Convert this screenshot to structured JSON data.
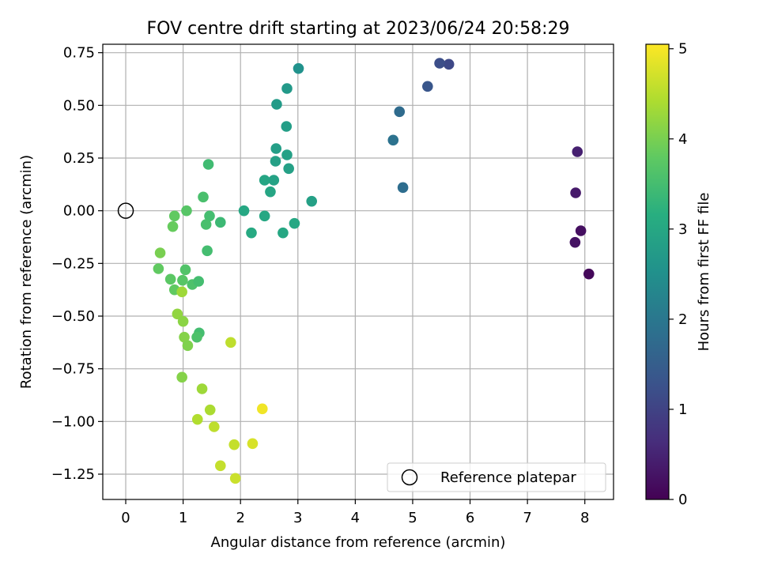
{
  "chart_data": {
    "type": "scatter",
    "title": "FOV centre drift starting at 2023/06/24 20:58:29",
    "xlabel": "Angular distance from reference (arcmin)",
    "ylabel": "Rotation from reference (arcmin)",
    "xlim": [
      -0.4,
      8.5
    ],
    "ylim": [
      -1.37,
      0.79
    ],
    "x_ticks": [
      0,
      1,
      2,
      3,
      4,
      5,
      6,
      7,
      8
    ],
    "y_ticks": [
      -1.25,
      -1.0,
      -0.75,
      -0.5,
      -0.25,
      0.0,
      0.25,
      0.5,
      0.75
    ],
    "x_tick_labels": [
      "0",
      "1",
      "2",
      "3",
      "4",
      "5",
      "6",
      "7",
      "8"
    ],
    "y_tick_labels": [
      "−1.25",
      "−1.00",
      "−0.75",
      "−0.50",
      "−0.25",
      "0.00",
      "0.25",
      "0.50",
      "0.75"
    ],
    "grid": true,
    "colorbar": {
      "label": "Hours from first FF file",
      "colormap": "viridis",
      "range": [
        0,
        5.05
      ],
      "ticks": [
        0,
        1,
        2,
        3,
        4,
        5
      ],
      "tick_labels": [
        "0",
        "1",
        "2",
        "3",
        "4",
        "5"
      ]
    },
    "legend": {
      "position": "lower-right",
      "entries": [
        "Reference platepar"
      ]
    },
    "reference_point": {
      "x": 0.0,
      "y": 0.0
    },
    "points": [
      {
        "x": 8.07,
        "y": -0.3,
        "c": 0.1
      },
      {
        "x": 7.93,
        "y": -0.095,
        "c": 0.2
      },
      {
        "x": 7.83,
        "y": -0.15,
        "c": 0.25
      },
      {
        "x": 7.84,
        "y": 0.085,
        "c": 0.35
      },
      {
        "x": 7.87,
        "y": 0.28,
        "c": 0.45
      },
      {
        "x": 5.63,
        "y": 0.695,
        "c": 1.1
      },
      {
        "x": 5.47,
        "y": 0.7,
        "c": 1.2
      },
      {
        "x": 5.26,
        "y": 0.59,
        "c": 1.35
      },
      {
        "x": 4.77,
        "y": 0.47,
        "c": 1.75
      },
      {
        "x": 4.83,
        "y": 0.11,
        "c": 1.8
      },
      {
        "x": 4.66,
        "y": 0.335,
        "c": 1.9
      },
      {
        "x": 3.01,
        "y": 0.675,
        "c": 2.55
      },
      {
        "x": 2.81,
        "y": 0.58,
        "c": 2.7
      },
      {
        "x": 2.63,
        "y": 0.505,
        "c": 2.75
      },
      {
        "x": 2.8,
        "y": 0.4,
        "c": 2.8
      },
      {
        "x": 2.62,
        "y": 0.295,
        "c": 2.8
      },
      {
        "x": 2.81,
        "y": 0.265,
        "c": 2.85
      },
      {
        "x": 2.61,
        "y": 0.235,
        "c": 2.85
      },
      {
        "x": 2.84,
        "y": 0.2,
        "c": 2.85
      },
      {
        "x": 2.58,
        "y": 0.145,
        "c": 2.9
      },
      {
        "x": 2.42,
        "y": 0.145,
        "c": 2.95
      },
      {
        "x": 2.52,
        "y": 0.09,
        "c": 2.95
      },
      {
        "x": 3.24,
        "y": 0.045,
        "c": 2.85
      },
      {
        "x": 2.06,
        "y": 0.0,
        "c": 3.0
      },
      {
        "x": 2.42,
        "y": -0.025,
        "c": 3.0
      },
      {
        "x": 2.19,
        "y": -0.105,
        "c": 3.05
      },
      {
        "x": 2.74,
        "y": -0.105,
        "c": 3.0
      },
      {
        "x": 2.94,
        "y": -0.06,
        "c": 3.0
      },
      {
        "x": 1.65,
        "y": -0.055,
        "c": 3.4
      },
      {
        "x": 1.44,
        "y": 0.22,
        "c": 3.45
      },
      {
        "x": 1.35,
        "y": 0.065,
        "c": 3.55
      },
      {
        "x": 1.46,
        "y": -0.025,
        "c": 3.5
      },
      {
        "x": 1.4,
        "y": -0.065,
        "c": 3.55
      },
      {
        "x": 1.42,
        "y": -0.19,
        "c": 3.5
      },
      {
        "x": 1.06,
        "y": 0.0,
        "c": 3.7
      },
      {
        "x": 0.85,
        "y": -0.025,
        "c": 3.8
      },
      {
        "x": 0.82,
        "y": -0.075,
        "c": 3.85
      },
      {
        "x": 0.6,
        "y": -0.2,
        "c": 4.0
      },
      {
        "x": 0.57,
        "y": -0.275,
        "c": 3.8
      },
      {
        "x": 0.78,
        "y": -0.325,
        "c": 3.75
      },
      {
        "x": 0.99,
        "y": -0.33,
        "c": 3.7
      },
      {
        "x": 1.04,
        "y": -0.28,
        "c": 3.65
      },
      {
        "x": 1.16,
        "y": -0.35,
        "c": 3.6
      },
      {
        "x": 1.27,
        "y": -0.335,
        "c": 3.5
      },
      {
        "x": 0.85,
        "y": -0.375,
        "c": 3.8
      },
      {
        "x": 0.98,
        "y": -0.385,
        "c": 4.3
      },
      {
        "x": 0.9,
        "y": -0.49,
        "c": 4.2
      },
      {
        "x": 1.0,
        "y": -0.525,
        "c": 4.15
      },
      {
        "x": 1.28,
        "y": -0.58,
        "c": 3.5
      },
      {
        "x": 1.24,
        "y": -0.6,
        "c": 3.6
      },
      {
        "x": 1.02,
        "y": -0.6,
        "c": 4.1
      },
      {
        "x": 1.08,
        "y": -0.64,
        "c": 4.05
      },
      {
        "x": 1.83,
        "y": -0.625,
        "c": 4.55
      },
      {
        "x": 0.98,
        "y": -0.79,
        "c": 4.1
      },
      {
        "x": 1.33,
        "y": -0.845,
        "c": 4.3
      },
      {
        "x": 1.47,
        "y": -0.945,
        "c": 4.4
      },
      {
        "x": 1.25,
        "y": -0.99,
        "c": 4.45
      },
      {
        "x": 1.54,
        "y": -1.025,
        "c": 4.55
      },
      {
        "x": 1.89,
        "y": -1.11,
        "c": 4.6
      },
      {
        "x": 2.21,
        "y": -1.105,
        "c": 4.75
      },
      {
        "x": 2.38,
        "y": -0.94,
        "c": 4.95
      },
      {
        "x": 1.65,
        "y": -1.21,
        "c": 4.6
      },
      {
        "x": 1.91,
        "y": -1.27,
        "c": 4.65
      }
    ]
  }
}
